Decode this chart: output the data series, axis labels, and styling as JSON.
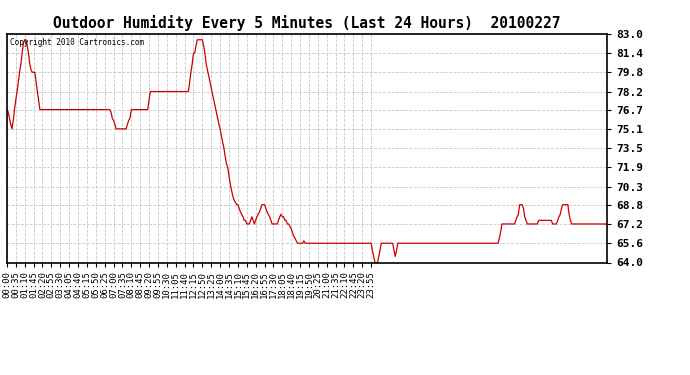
{
  "title": "Outdoor Humidity Every 5 Minutes (Last 24 Hours)  20100227",
  "copyright": "Copyright 2010 Cartronics.com",
  "line_color": "#cc0000",
  "bg_color": "#ffffff",
  "grid_color": "#c8c8c8",
  "yticks": [
    64.0,
    65.6,
    67.2,
    68.8,
    70.3,
    71.9,
    73.5,
    75.1,
    76.7,
    78.2,
    79.8,
    81.4,
    83.0
  ],
  "ylim": [
    64.0,
    83.0
  ],
  "xtick_labels": [
    "00:00",
    "00:35",
    "01:10",
    "01:45",
    "02:20",
    "02:55",
    "03:30",
    "04:05",
    "04:40",
    "05:15",
    "05:50",
    "06:25",
    "07:00",
    "07:35",
    "08:10",
    "08:45",
    "09:20",
    "09:55",
    "10:30",
    "11:05",
    "11:40",
    "12:15",
    "12:50",
    "13:25",
    "14:00",
    "14:35",
    "15:10",
    "15:45",
    "16:20",
    "16:55",
    "17:30",
    "18:05",
    "18:40",
    "19:15",
    "19:50",
    "20:25",
    "21:00",
    "21:35",
    "22:10",
    "22:45",
    "23:20",
    "23:55"
  ],
  "humidity_values": [
    76.7,
    76.5,
    76.0,
    75.5,
    75.1,
    75.8,
    76.7,
    77.5,
    78.2,
    79.0,
    79.8,
    80.5,
    81.4,
    82.2,
    82.5,
    82.5,
    82.0,
    81.4,
    80.5,
    80.0,
    79.8,
    79.8,
    79.8,
    79.0,
    78.2,
    77.5,
    76.7,
    76.7,
    76.7,
    76.7,
    76.7,
    76.7,
    76.7,
    76.7,
    76.7,
    76.7,
    76.7,
    76.7,
    76.7,
    76.7,
    76.7,
    76.7,
    76.7,
    76.7,
    76.7,
    76.7,
    76.7,
    76.7,
    76.7,
    76.7,
    76.7,
    76.7,
    76.7,
    76.7,
    76.7,
    76.7,
    76.7,
    76.7,
    76.7,
    76.7,
    76.7,
    76.7,
    76.7,
    76.7,
    76.7,
    76.7,
    76.7,
    76.7,
    76.7,
    76.7,
    76.7,
    76.7,
    76.7,
    76.7,
    76.7,
    76.7,
    76.7,
    76.7,
    76.7,
    76.7,
    76.7,
    76.7,
    76.5,
    76.0,
    75.8,
    75.5,
    75.1,
    75.1,
    75.1,
    75.1,
    75.1,
    75.1,
    75.1,
    75.1,
    75.1,
    75.5,
    75.8,
    76.0,
    76.7,
    76.7,
    76.7,
    76.7,
    76.7,
    76.7,
    76.7,
    76.7,
    76.7,
    76.7,
    76.7,
    76.7,
    76.7,
    76.7,
    77.5,
    78.2,
    78.2,
    78.2,
    78.2,
    78.2,
    78.2,
    78.2,
    78.2,
    78.2,
    78.2,
    78.2,
    78.2,
    78.2,
    78.2,
    78.2,
    78.2,
    78.2,
    78.2,
    78.2,
    78.2,
    78.2,
    78.2,
    78.2,
    78.2,
    78.2,
    78.2,
    78.2,
    78.2,
    78.2,
    78.2,
    78.2,
    79.0,
    79.8,
    80.5,
    81.4,
    81.4,
    82.0,
    82.5,
    82.5,
    82.5,
    82.5,
    82.5,
    82.0,
    81.4,
    80.5,
    80.0,
    79.5,
    79.0,
    78.5,
    78.0,
    77.5,
    77.0,
    76.5,
    76.0,
    75.5,
    75.1,
    74.5,
    74.0,
    73.5,
    72.8,
    72.2,
    71.9,
    71.2,
    70.5,
    70.0,
    69.5,
    69.2,
    69.0,
    68.8,
    68.8,
    68.5,
    68.2,
    68.0,
    67.8,
    67.5,
    67.5,
    67.2,
    67.2,
    67.2,
    67.5,
    67.8,
    67.5,
    67.2,
    67.5,
    67.8,
    68.0,
    68.2,
    68.5,
    68.8,
    68.8,
    68.8,
    68.5,
    68.2,
    68.0,
    67.8,
    67.5,
    67.2,
    67.2,
    67.2,
    67.2,
    67.2,
    67.5,
    67.8,
    68.0,
    67.8,
    67.8,
    67.5,
    67.5,
    67.2,
    67.2,
    67.0,
    66.8,
    66.5,
    66.2,
    66.0,
    65.8,
    65.6,
    65.6,
    65.6,
    65.6,
    65.6,
    65.8,
    65.6,
    65.6,
    65.6,
    65.6,
    65.6,
    65.6,
    65.6,
    65.6,
    65.6,
    65.6,
    65.6,
    65.6,
    65.6,
    65.6,
    65.6,
    65.6,
    65.6,
    65.6,
    65.6,
    65.6,
    65.6,
    65.6,
    65.6,
    65.6,
    65.6,
    65.6,
    65.6,
    65.6,
    65.6,
    65.6,
    65.6,
    65.6,
    65.6,
    65.6,
    65.6,
    65.6,
    65.6,
    65.6,
    65.6,
    65.6,
    65.6,
    65.6,
    65.6,
    65.6,
    65.6,
    65.6,
    65.6,
    65.6,
    65.6,
    65.6,
    65.6,
    65.6,
    65.6,
    65.0,
    64.5,
    64.0,
    64.0,
    64.0,
    64.5,
    65.0,
    65.6,
    65.6,
    65.6,
    65.6,
    65.6,
    65.6,
    65.6,
    65.6,
    65.6,
    65.6,
    65.0,
    64.5,
    65.0,
    65.6,
    65.6,
    65.6,
    65.6,
    65.6,
    65.6,
    65.6,
    65.6,
    65.6,
    65.6,
    65.6,
    65.6,
    65.6,
    65.6,
    65.6,
    65.6,
    65.6,
    65.6,
    65.6,
    65.6,
    65.6,
    65.6,
    65.6,
    65.6,
    65.6,
    65.6,
    65.6,
    65.6,
    65.6,
    65.6,
    65.6,
    65.6,
    65.6,
    65.6,
    65.6,
    65.6,
    65.6,
    65.6,
    65.6,
    65.6,
    65.6,
    65.6,
    65.6,
    65.6,
    65.6,
    65.6,
    65.6,
    65.6,
    65.6,
    65.6,
    65.6,
    65.6,
    65.6,
    65.6,
    65.6,
    65.6,
    65.6,
    65.6,
    65.6,
    65.6,
    65.6,
    65.6,
    65.6,
    65.6,
    65.6,
    65.6,
    65.6,
    65.6,
    65.6,
    65.6,
    65.6,
    65.6,
    65.6,
    65.6,
    65.6,
    65.6,
    65.6,
    65.6,
    65.6,
    65.6,
    66.0,
    66.5,
    67.2,
    67.2,
    67.2,
    67.2,
    67.2,
    67.2,
    67.2,
    67.2,
    67.2,
    67.2,
    67.2,
    67.5,
    67.8,
    68.0,
    68.8,
    68.8,
    68.8,
    68.5,
    67.8,
    67.5,
    67.2,
    67.2,
    67.2,
    67.2,
    67.2,
    67.2,
    67.2,
    67.2,
    67.2,
    67.5,
    67.5,
    67.5,
    67.5,
    67.5,
    67.5,
    67.5,
    67.5,
    67.5,
    67.5,
    67.5,
    67.2,
    67.2,
    67.2,
    67.2,
    67.5,
    67.8,
    68.0,
    68.5,
    68.8,
    68.8,
    68.8,
    68.8,
    68.8,
    68.0,
    67.5,
    67.2,
    67.2,
    67.2,
    67.2,
    67.2,
    67.2,
    67.2,
    67.2,
    67.2,
    67.2,
    67.2,
    67.2,
    67.2,
    67.2,
    67.2,
    67.2,
    67.2,
    67.2,
    67.2,
    67.2,
    67.2,
    67.2,
    67.2,
    67.2,
    67.2,
    67.2,
    67.2,
    67.2,
    67.2
  ]
}
